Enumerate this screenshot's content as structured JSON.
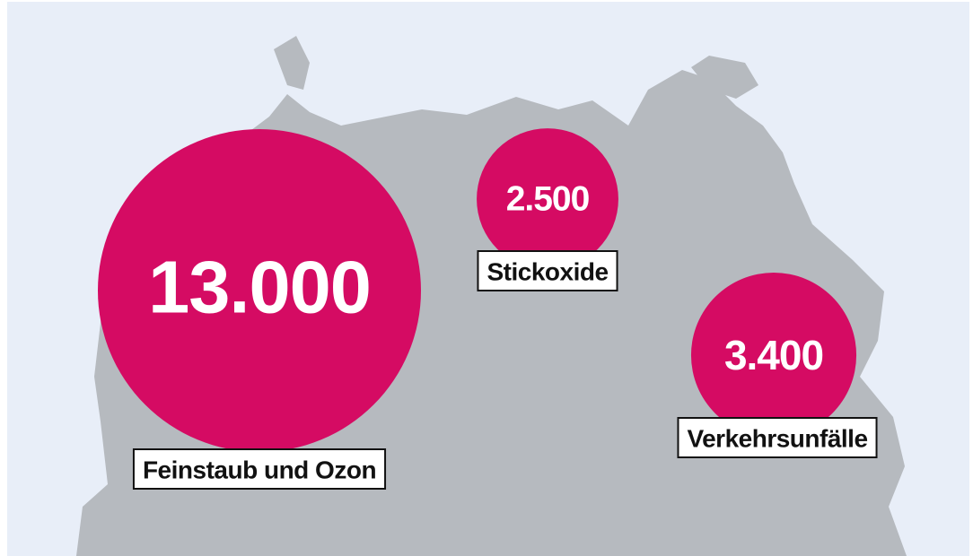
{
  "chart_data": {
    "type": "bubble",
    "categories": [
      "Feinstaub und Ozon",
      "Stickoxide",
      "Verkehrsunfälle"
    ],
    "values": [
      13000,
      2500,
      3400
    ],
    "value_labels": [
      "13.000",
      "2.500",
      "3.400"
    ],
    "color": "#d50b63"
  }
}
